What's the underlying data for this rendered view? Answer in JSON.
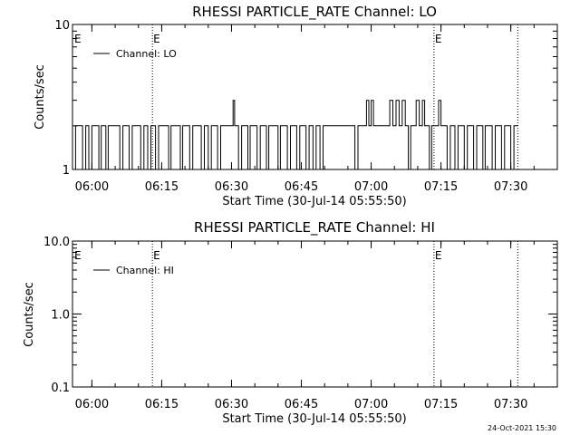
{
  "footer_timestamp": "24-Oct-2021 15:30",
  "chart_data": [
    {
      "type": "line",
      "title": "RHESSI PARTICLE_RATE Channel: LO",
      "xlabel": "Start Time (30-Jul-14 05:55:50)",
      "ylabel": "Counts/sec",
      "yscale": "log",
      "ylim": [
        1,
        10
      ],
      "yticks": [
        "1",
        "10"
      ],
      "xlim": [
        "05:55:50",
        "07:40:00"
      ],
      "xticks": [
        "06:00",
        "06:15",
        "06:30",
        "06:45",
        "07:00",
        "07:15",
        "07:30"
      ],
      "markers": [
        {
          "time": "06:13:00",
          "label": "E"
        },
        {
          "time": "07:13:30",
          "label": "E"
        },
        {
          "time": "07:31:30",
          "label": ""
        }
      ],
      "legend": "top-left",
      "grid": false,
      "series": [
        {
          "name": "Channel: LO",
          "steps": [
            [
              "05:55:50",
              1
            ],
            [
              "05:56:30",
              2
            ],
            [
              "05:58:00",
              1
            ],
            [
              "05:58:40",
              2
            ],
            [
              "05:59:20",
              1
            ],
            [
              "06:00:00",
              2
            ],
            [
              "06:01:30",
              1
            ],
            [
              "06:02:00",
              2
            ],
            [
              "06:03:00",
              1
            ],
            [
              "06:03:30",
              2
            ],
            [
              "06:06:00",
              1
            ],
            [
              "06:06:40",
              2
            ],
            [
              "06:08:00",
              1
            ],
            [
              "06:08:40",
              2
            ],
            [
              "06:10:30",
              1
            ],
            [
              "06:11:10",
              2
            ],
            [
              "06:12:00",
              1
            ],
            [
              "06:12:40",
              2
            ],
            [
              "06:13:40",
              1
            ],
            [
              "06:14:20",
              2
            ],
            [
              "06:16:30",
              1
            ],
            [
              "06:17:00",
              2
            ],
            [
              "06:19:00",
              1
            ],
            [
              "06:19:30",
              2
            ],
            [
              "06:21:00",
              1
            ],
            [
              "06:21:40",
              2
            ],
            [
              "06:23:30",
              1
            ],
            [
              "06:24:10",
              2
            ],
            [
              "06:25:00",
              1
            ],
            [
              "06:25:40",
              2
            ],
            [
              "06:27:00",
              1
            ],
            [
              "06:27:40",
              2
            ],
            [
              "06:30:20",
              3
            ],
            [
              "06:30:40",
              2
            ],
            [
              "06:31:30",
              1
            ],
            [
              "06:32:10",
              2
            ],
            [
              "06:33:30",
              1
            ],
            [
              "06:34:00",
              2
            ],
            [
              "06:35:30",
              1
            ],
            [
              "06:36:10",
              2
            ],
            [
              "06:37:30",
              1
            ],
            [
              "06:38:00",
              2
            ],
            [
              "06:40:00",
              1
            ],
            [
              "06:40:30",
              2
            ],
            [
              "06:42:00",
              1
            ],
            [
              "06:42:40",
              2
            ],
            [
              "06:44:00",
              1
            ],
            [
              "06:44:40",
              2
            ],
            [
              "06:46:00",
              1
            ],
            [
              "06:46:40",
              2
            ],
            [
              "06:47:30",
              1
            ],
            [
              "06:48:10",
              2
            ],
            [
              "06:49:00",
              1
            ],
            [
              "06:49:40",
              2
            ],
            [
              "06:55:00",
              2
            ],
            [
              "06:56:30",
              1
            ],
            [
              "06:57:10",
              2
            ],
            [
              "06:59:00",
              3
            ],
            [
              "06:59:30",
              2
            ],
            [
              "07:00:00",
              3
            ],
            [
              "07:00:30",
              2
            ],
            [
              "07:04:00",
              3
            ],
            [
              "07:04:40",
              2
            ],
            [
              "07:05:20",
              3
            ],
            [
              "07:06:00",
              2
            ],
            [
              "07:06:40",
              3
            ],
            [
              "07:07:20",
              2
            ],
            [
              "07:08:00",
              1
            ],
            [
              "07:08:30",
              2
            ],
            [
              "07:09:40",
              3
            ],
            [
              "07:10:20",
              2
            ],
            [
              "07:11:00",
              3
            ],
            [
              "07:11:30",
              2
            ],
            [
              "07:12:30",
              1
            ],
            [
              "07:13:00",
              2
            ],
            [
              "07:14:30",
              3
            ],
            [
              "07:15:00",
              2
            ],
            [
              "07:16:20",
              1
            ],
            [
              "07:17:00",
              2
            ],
            [
              "07:18:00",
              1
            ],
            [
              "07:18:40",
              2
            ],
            [
              "07:20:00",
              1
            ],
            [
              "07:20:40",
              2
            ],
            [
              "07:22:00",
              1
            ],
            [
              "07:22:40",
              2
            ],
            [
              "07:24:00",
              1
            ],
            [
              "07:24:30",
              2
            ],
            [
              "07:26:00",
              1
            ],
            [
              "07:26:40",
              2
            ],
            [
              "07:28:00",
              1
            ],
            [
              "07:28:40",
              2
            ],
            [
              "07:30:00",
              1
            ],
            [
              "07:30:40",
              2
            ],
            [
              "07:31:30",
              2
            ]
          ]
        }
      ]
    },
    {
      "type": "line",
      "title": "RHESSI PARTICLE_RATE Channel: HI",
      "xlabel": "Start Time (30-Jul-14 05:55:50)",
      "ylabel": "Counts/sec",
      "yscale": "log",
      "ylim": [
        0.1,
        10
      ],
      "yticks": [
        "0.1",
        "1.0",
        "10.0"
      ],
      "xlim": [
        "05:55:50",
        "07:40:00"
      ],
      "xticks": [
        "06:00",
        "06:15",
        "06:30",
        "06:45",
        "07:00",
        "07:15",
        "07:30"
      ],
      "markers": [
        {
          "time": "06:13:00",
          "label": "E"
        },
        {
          "time": "07:13:30",
          "label": "E"
        },
        {
          "time": "07:31:30",
          "label": ""
        }
      ],
      "legend": "top-left",
      "grid": false,
      "series": [
        {
          "name": "Channel: HI",
          "steps": []
        }
      ]
    }
  ]
}
